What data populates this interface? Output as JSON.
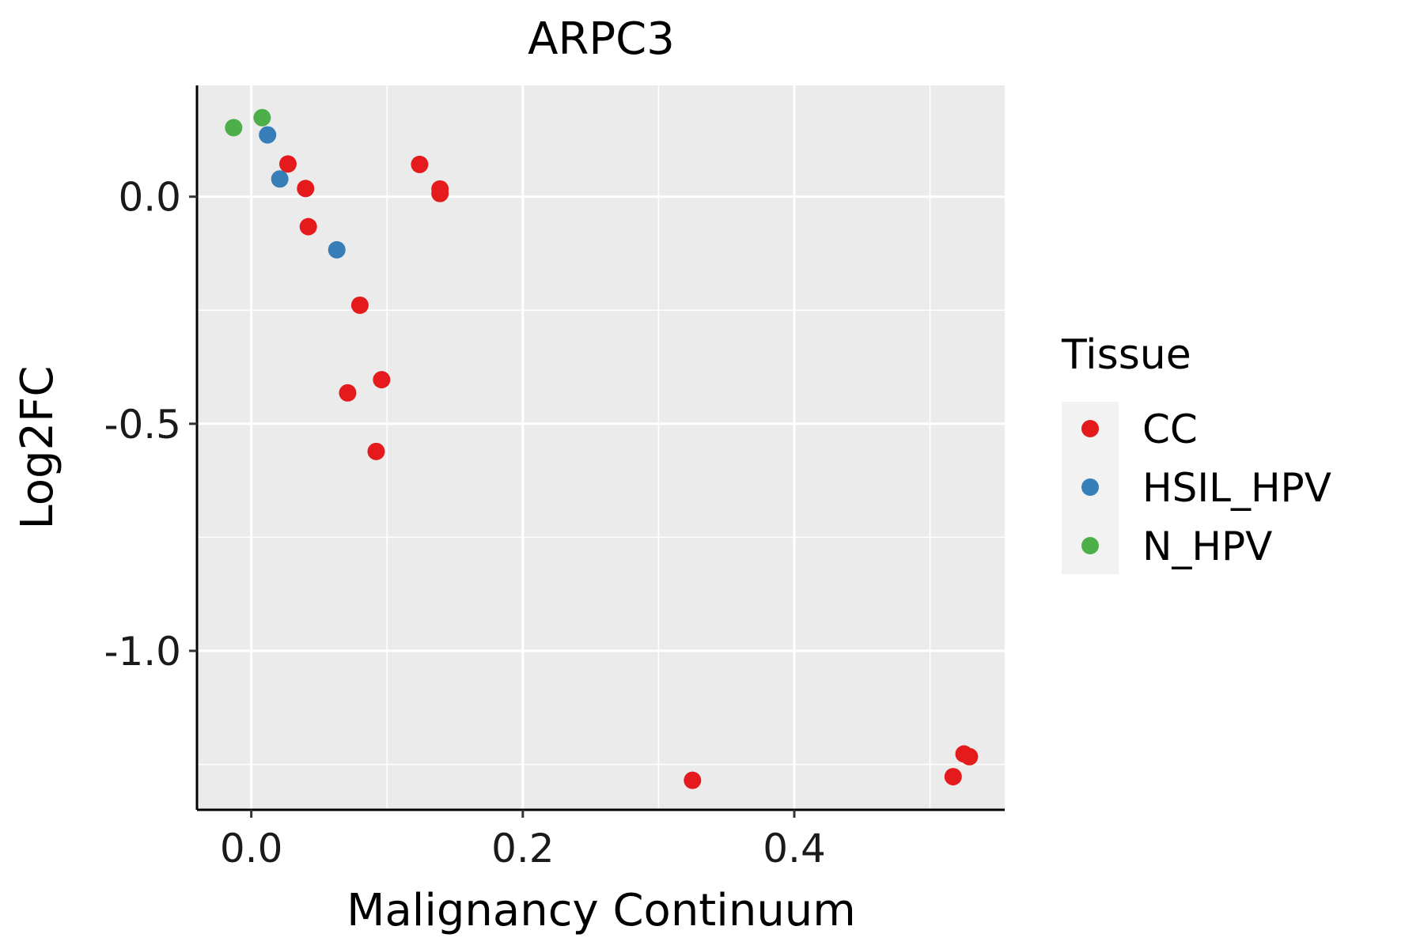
{
  "chart_data": {
    "type": "scatter",
    "title": "ARPC3",
    "xlabel": "Malignancy Continuum",
    "ylabel": "Log2FC",
    "xlim": [
      -0.04,
      0.555
    ],
    "ylim": [
      -1.35,
      0.245
    ],
    "x_ticks": [
      0.0,
      0.2,
      0.4
    ],
    "x_tick_labels": [
      "0.0",
      "0.2",
      "0.4"
    ],
    "y_ticks": [
      0.0,
      -0.5,
      -1.0
    ],
    "y_tick_labels": [
      "0.0",
      "-0.5",
      "-1.0"
    ],
    "grid": true,
    "legend": {
      "title": "Tissue",
      "position": "right",
      "entries": [
        {
          "name": "CC",
          "color": "#e41a1c"
        },
        {
          "name": "HSIL_HPV",
          "color": "#377eb8"
        },
        {
          "name": "N_HPV",
          "color": "#4daf4a"
        }
      ]
    },
    "series": [
      {
        "name": "CC",
        "color": "#e41a1c",
        "points": [
          {
            "x": 0.027,
            "y": 0.072
          },
          {
            "x": 0.04,
            "y": 0.018
          },
          {
            "x": 0.042,
            "y": -0.066
          },
          {
            "x": 0.08,
            "y": -0.239
          },
          {
            "x": 0.071,
            "y": -0.432
          },
          {
            "x": 0.096,
            "y": -0.403
          },
          {
            "x": 0.092,
            "y": -0.561
          },
          {
            "x": 0.124,
            "y": 0.071
          },
          {
            "x": 0.139,
            "y": 0.017
          },
          {
            "x": 0.139,
            "y": 0.007
          },
          {
            "x": 0.325,
            "y": -1.285
          },
          {
            "x": 0.517,
            "y": -1.277
          },
          {
            "x": 0.525,
            "y": -1.227
          },
          {
            "x": 0.529,
            "y": -1.233
          }
        ]
      },
      {
        "name": "HSIL_HPV",
        "color": "#377eb8",
        "points": [
          {
            "x": 0.012,
            "y": 0.136
          },
          {
            "x": 0.021,
            "y": 0.039
          },
          {
            "x": 0.063,
            "y": -0.117
          }
        ]
      },
      {
        "name": "N_HPV",
        "color": "#4daf4a",
        "points": [
          {
            "x": -0.013,
            "y": 0.152
          },
          {
            "x": 0.008,
            "y": 0.174
          }
        ]
      }
    ]
  }
}
